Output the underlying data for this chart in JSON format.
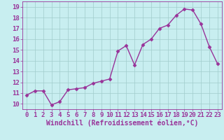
{
  "x": [
    0,
    1,
    2,
    3,
    4,
    5,
    6,
    7,
    8,
    9,
    10,
    11,
    12,
    13,
    14,
    15,
    16,
    17,
    18,
    19,
    20,
    21,
    22,
    23
  ],
  "y": [
    10.8,
    11.2,
    11.2,
    9.9,
    10.2,
    11.3,
    11.4,
    11.5,
    11.9,
    12.1,
    12.3,
    14.9,
    15.4,
    13.6,
    15.5,
    16.0,
    17.0,
    17.3,
    18.2,
    18.8,
    18.7,
    17.4,
    15.3,
    13.7
  ],
  "line_color": "#993399",
  "marker": "D",
  "markersize": 2.5,
  "linewidth": 1.0,
  "bg_color": "#c8eef0",
  "grid_color": "#a0cccc",
  "xlabel": "Windchill (Refroidissement éolien,°C)",
  "ylim": [
    9.5,
    19.5
  ],
  "xlim": [
    -0.5,
    23.5
  ],
  "yticks": [
    10,
    11,
    12,
    13,
    14,
    15,
    16,
    17,
    18,
    19
  ],
  "xticks": [
    0,
    1,
    2,
    3,
    4,
    5,
    6,
    7,
    8,
    9,
    10,
    11,
    12,
    13,
    14,
    15,
    16,
    17,
    18,
    19,
    20,
    21,
    22,
    23
  ],
  "tick_color": "#993399",
  "label_color": "#993399",
  "font_size": 6.5,
  "xlabel_font_size": 7.0
}
